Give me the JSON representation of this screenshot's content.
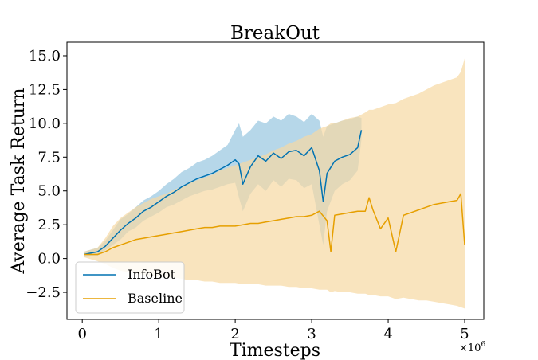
{
  "chart_data": {
    "type": "line",
    "title": "BreakOut",
    "xlabel": "Timesteps",
    "ylabel": "Average Task Return",
    "x_multiplier": "×10",
    "x_multiplier_exp": "6",
    "xlim": [
      -0.2,
      5.25
    ],
    "ylim": [
      -4.5,
      16.0
    ],
    "xticks": [
      0,
      1,
      2,
      3,
      4,
      5
    ],
    "xtick_labels": [
      "0",
      "1",
      "2",
      "3",
      "4",
      "5"
    ],
    "yticks": [
      -2.5,
      0.0,
      2.5,
      5.0,
      7.5,
      10.0,
      12.5,
      15.0
    ],
    "ytick_labels": [
      "−2.5",
      "0.0",
      "2.5",
      "5.0",
      "7.5",
      "10.0",
      "12.5",
      "15.0"
    ],
    "grid": false,
    "legend_position": "lower-left",
    "series": [
      {
        "name": "InfoBot",
        "color": "#0072B2",
        "band_color": "#9ecae1",
        "x": [
          0.02,
          0.2,
          0.3,
          0.4,
          0.5,
          0.6,
          0.7,
          0.8,
          0.9,
          1.0,
          1.1,
          1.2,
          1.3,
          1.4,
          1.5,
          1.6,
          1.7,
          1.8,
          1.9,
          2.0,
          2.05,
          2.1,
          2.2,
          2.3,
          2.4,
          2.5,
          2.6,
          2.7,
          2.8,
          2.9,
          3.0,
          3.1,
          3.15,
          3.2,
          3.3,
          3.4,
          3.5,
          3.6,
          3.65
        ],
        "y": [
          0.3,
          0.5,
          0.9,
          1.5,
          2.1,
          2.6,
          3.0,
          3.5,
          3.8,
          4.2,
          4.6,
          4.9,
          5.3,
          5.6,
          5.9,
          6.1,
          6.3,
          6.6,
          6.9,
          7.3,
          7.0,
          5.5,
          6.8,
          7.6,
          7.2,
          7.8,
          7.4,
          7.9,
          8.0,
          7.6,
          8.2,
          6.5,
          4.2,
          6.3,
          7.2,
          7.5,
          7.7,
          8.2,
          9.5
        ],
        "lower": [
          0.1,
          0.2,
          0.6,
          1.0,
          1.4,
          2.0,
          2.3,
          2.8,
          3.1,
          3.4,
          3.8,
          4.0,
          4.3,
          4.6,
          4.8,
          5.0,
          5.1,
          5.3,
          5.5,
          5.6,
          4.5,
          3.5,
          4.8,
          5.5,
          5.0,
          5.8,
          5.3,
          5.9,
          5.8,
          5.2,
          5.5,
          2.5,
          1.0,
          3.5,
          5.0,
          5.5,
          5.8,
          6.5,
          8.8
        ],
        "upper": [
          0.5,
          0.8,
          1.3,
          2.1,
          2.9,
          3.3,
          3.8,
          4.3,
          4.6,
          5.0,
          5.5,
          5.9,
          6.4,
          6.7,
          7.1,
          7.3,
          7.6,
          8.0,
          8.4,
          9.5,
          10.0,
          9.0,
          9.5,
          10.2,
          10.0,
          10.5,
          10.2,
          10.7,
          10.5,
          10.1,
          10.7,
          10.2,
          9.0,
          9.8,
          10.0,
          10.2,
          10.3,
          10.5,
          10.4
        ]
      },
      {
        "name": "Baseline",
        "color": "#E69F00",
        "band_color": "#f7d9a3",
        "x": [
          0.02,
          0.2,
          0.3,
          0.4,
          0.5,
          0.6,
          0.7,
          0.8,
          0.9,
          1.0,
          1.1,
          1.2,
          1.3,
          1.4,
          1.5,
          1.6,
          1.7,
          1.8,
          1.9,
          2.0,
          2.1,
          2.2,
          2.3,
          2.4,
          2.5,
          2.6,
          2.7,
          2.8,
          2.9,
          3.0,
          3.1,
          3.2,
          3.25,
          3.3,
          3.4,
          3.5,
          3.6,
          3.7,
          3.75,
          3.8,
          3.9,
          4.0,
          4.1,
          4.2,
          4.3,
          4.4,
          4.5,
          4.6,
          4.7,
          4.8,
          4.9,
          4.95,
          5.0
        ],
        "y": [
          0.3,
          0.3,
          0.5,
          0.8,
          1.0,
          1.2,
          1.4,
          1.5,
          1.6,
          1.7,
          1.8,
          1.9,
          2.0,
          2.1,
          2.2,
          2.3,
          2.3,
          2.4,
          2.4,
          2.4,
          2.5,
          2.6,
          2.6,
          2.7,
          2.8,
          2.9,
          3.0,
          3.1,
          3.1,
          3.2,
          3.5,
          2.8,
          0.5,
          3.2,
          3.3,
          3.4,
          3.5,
          3.5,
          4.5,
          3.6,
          2.2,
          3.0,
          0.5,
          3.2,
          3.4,
          3.6,
          3.8,
          4.0,
          4.1,
          4.2,
          4.3,
          4.8,
          1.0
        ],
        "lower": [
          0.1,
          -0.2,
          -0.4,
          -0.7,
          -0.9,
          -1.0,
          -1.1,
          -1.2,
          -1.3,
          -1.3,
          -1.4,
          -1.4,
          -1.5,
          -1.6,
          -1.6,
          -1.7,
          -1.7,
          -1.8,
          -1.8,
          -1.8,
          -1.9,
          -1.9,
          -1.9,
          -2.0,
          -2.0,
          -2.0,
          -2.1,
          -2.1,
          -2.2,
          -2.2,
          -2.3,
          -2.3,
          -2.5,
          -2.4,
          -2.5,
          -2.5,
          -2.6,
          -2.6,
          -2.7,
          -2.7,
          -2.8,
          -2.8,
          -3.0,
          -2.9,
          -3.0,
          -3.1,
          -3.1,
          -3.2,
          -3.3,
          -3.4,
          -3.5,
          -3.6,
          -3.7
        ],
        "upper": [
          0.5,
          0.8,
          1.5,
          2.4,
          3.0,
          3.4,
          3.8,
          4.1,
          4.4,
          4.6,
          4.8,
          5.1,
          5.3,
          5.6,
          5.8,
          6.0,
          6.2,
          6.5,
          6.7,
          6.9,
          7.1,
          7.3,
          7.5,
          7.7,
          8.0,
          8.2,
          8.5,
          8.7,
          9.0,
          9.2,
          9.6,
          9.8,
          10.0,
          10.0,
          10.2,
          10.4,
          10.5,
          10.8,
          11.0,
          11.0,
          11.2,
          11.4,
          11.5,
          11.8,
          12.0,
          12.2,
          12.5,
          12.8,
          13.0,
          13.2,
          13.4,
          13.8,
          14.8
        ]
      }
    ]
  }
}
